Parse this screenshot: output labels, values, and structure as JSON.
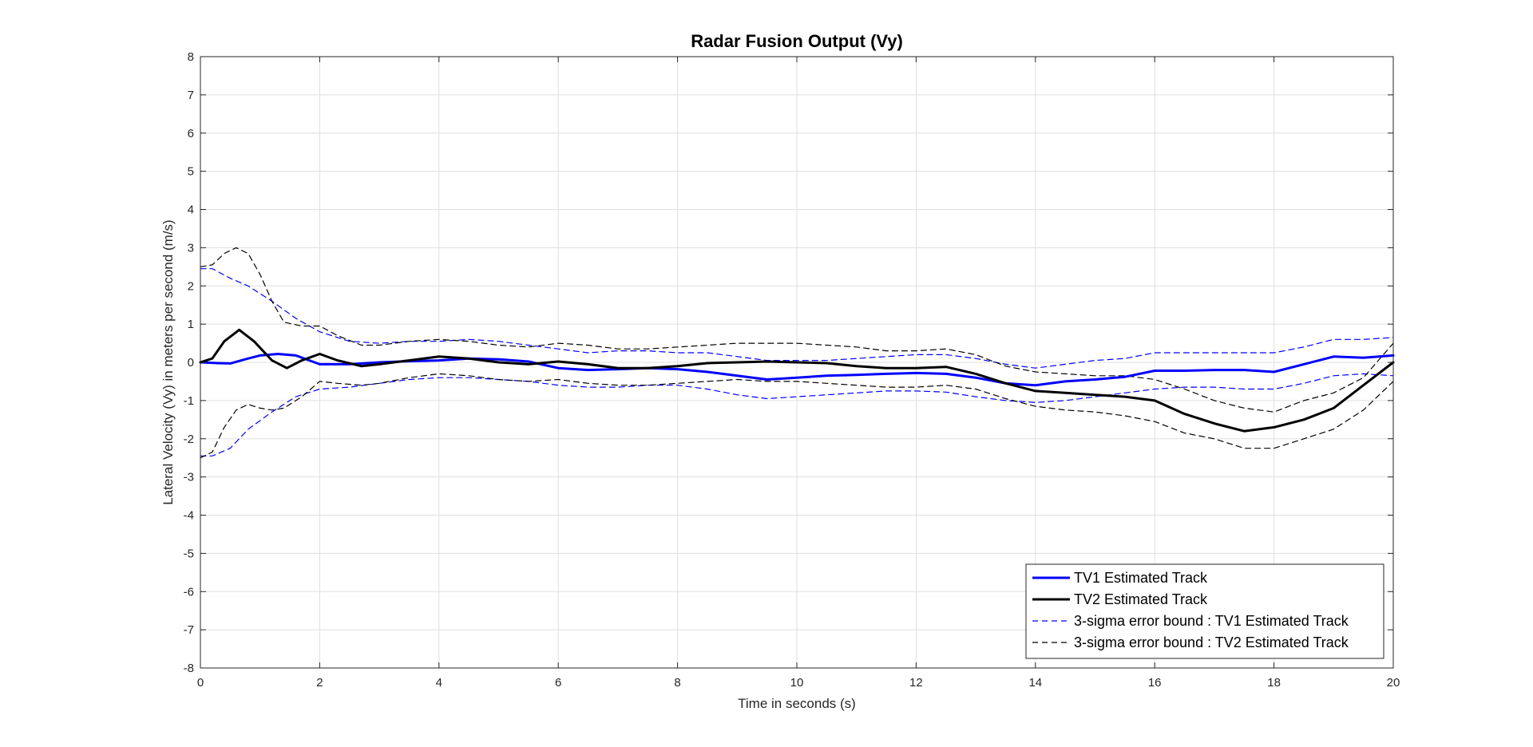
{
  "chart_data": {
    "type": "line",
    "title": "Radar Fusion Output (Vy)",
    "xlabel": "Time in seconds (s)",
    "ylabel": "Lateral Velocity (Vy) in meters per second (m/s)",
    "xlim": [
      0,
      20
    ],
    "ylim": [
      -8,
      8
    ],
    "xticks": [
      0,
      2,
      4,
      6,
      8,
      10,
      12,
      14,
      16,
      18,
      20
    ],
    "yticks": [
      -8,
      -7,
      -6,
      -5,
      -4,
      -3,
      -2,
      -1,
      0,
      1,
      2,
      3,
      4,
      5,
      6,
      7,
      8
    ],
    "grid": true,
    "legend_position": "bottom-right",
    "series": [
      {
        "name": "TV1 Estimated Track",
        "color": "#0000ff",
        "style": "solid",
        "x": [
          0,
          0.3,
          0.5,
          0.8,
          1.0,
          1.3,
          1.6,
          2.0,
          2.5,
          3,
          3.5,
          4,
          4.5,
          5,
          5.5,
          6,
          6.5,
          7,
          7.5,
          8,
          8.5,
          9,
          9.5,
          10,
          10.5,
          11,
          11.5,
          12,
          12.5,
          13,
          13.5,
          14,
          14.5,
          15,
          15.5,
          16,
          16.5,
          17,
          17.5,
          18,
          18.5,
          19,
          19.5,
          20
        ],
        "y": [
          0,
          -0.02,
          -0.03,
          0.1,
          0.18,
          0.22,
          0.18,
          -0.05,
          -0.05,
          0,
          0.03,
          0.05,
          0.1,
          0.08,
          0.02,
          -0.15,
          -0.2,
          -0.18,
          -0.15,
          -0.18,
          -0.25,
          -0.35,
          -0.45,
          -0.4,
          -0.35,
          -0.33,
          -0.3,
          -0.28,
          -0.3,
          -0.4,
          -0.55,
          -0.6,
          -0.5,
          -0.45,
          -0.38,
          -0.22,
          -0.22,
          -0.2,
          -0.2,
          -0.25,
          -0.05,
          0.15,
          0.12,
          0.18
        ]
      },
      {
        "name": "TV2 Estimated Track",
        "color": "#000000",
        "style": "solid",
        "x": [
          0,
          0.2,
          0.4,
          0.65,
          0.9,
          1.2,
          1.45,
          1.7,
          2.0,
          2.3,
          2.7,
          3,
          3.5,
          4,
          4.5,
          5,
          5.5,
          6,
          6.5,
          7,
          7.5,
          8,
          8.5,
          9,
          9.5,
          10,
          10.5,
          11,
          11.5,
          12,
          12.5,
          13,
          13.5,
          14,
          14.5,
          15,
          15.5,
          16,
          16.5,
          17,
          17.5,
          18,
          18.5,
          19,
          19.5,
          20
        ],
        "y": [
          0,
          0.1,
          0.55,
          0.85,
          0.55,
          0.05,
          -0.15,
          0.05,
          0.22,
          0.05,
          -0.1,
          -0.05,
          0.05,
          0.15,
          0.1,
          0,
          -0.05,
          0.02,
          -0.05,
          -0.15,
          -0.15,
          -0.1,
          -0.02,
          0,
          0.02,
          0,
          -0.02,
          -0.1,
          -0.15,
          -0.15,
          -0.12,
          -0.3,
          -0.55,
          -0.75,
          -0.8,
          -0.85,
          -0.9,
          -1.0,
          -1.35,
          -1.6,
          -1.8,
          -1.7,
          -1.5,
          -1.2,
          -0.6,
          0
        ]
      },
      {
        "name": "3-sigma error bound : TV1 Estimated Track",
        "color": "#0000ff",
        "style": "dashed",
        "x": [
          0,
          0.2,
          0.5,
          0.8,
          1.2,
          1.6,
          2.0,
          2.5,
          3,
          3.5,
          4,
          4.5,
          5,
          5.5,
          6,
          6.5,
          7,
          7.5,
          8,
          8.5,
          9,
          9.5,
          10,
          10.5,
          11,
          11.5,
          12,
          12.5,
          13,
          13.5,
          14,
          14.5,
          15,
          15.5,
          16,
          16.5,
          17,
          17.5,
          18,
          18.5,
          19,
          19.5,
          20
        ],
        "y": [
          2.45,
          2.45,
          2.2,
          2.0,
          1.6,
          1.15,
          0.8,
          0.55,
          0.5,
          0.55,
          0.55,
          0.6,
          0.55,
          0.45,
          0.35,
          0.25,
          0.3,
          0.3,
          0.25,
          0.25,
          0.15,
          0.05,
          0.05,
          0.05,
          0.1,
          0.15,
          0.2,
          0.2,
          0.1,
          -0.05,
          -0.15,
          -0.05,
          0.05,
          0.1,
          0.25,
          0.25,
          0.25,
          0.25,
          0.25,
          0.4,
          0.6,
          0.6,
          0.65
        ]
      },
      {
        "name": "3-sigma error bound : TV1 Estimated Track",
        "color": "#0000ff",
        "style": "dashed",
        "x": [
          0,
          0.2,
          0.5,
          0.8,
          1.2,
          1.6,
          2.0,
          2.5,
          3,
          3.5,
          4,
          4.5,
          5,
          5.5,
          6,
          6.5,
          7,
          7.5,
          8,
          8.5,
          9,
          9.5,
          10,
          10.5,
          11,
          11.5,
          12,
          12.5,
          13,
          13.5,
          14,
          14.5,
          15,
          15.5,
          16,
          16.5,
          17,
          17.5,
          18,
          18.5,
          19,
          19.5,
          20
        ],
        "y": [
          -2.45,
          -2.45,
          -2.25,
          -1.75,
          -1.3,
          -0.9,
          -0.7,
          -0.65,
          -0.55,
          -0.45,
          -0.4,
          -0.4,
          -0.45,
          -0.5,
          -0.6,
          -0.65,
          -0.65,
          -0.6,
          -0.6,
          -0.7,
          -0.85,
          -0.95,
          -0.9,
          -0.85,
          -0.8,
          -0.75,
          -0.75,
          -0.78,
          -0.9,
          -1.0,
          -1.05,
          -1.0,
          -0.9,
          -0.8,
          -0.7,
          -0.65,
          -0.65,
          -0.7,
          -0.7,
          -0.55,
          -0.35,
          -0.3,
          -0.35
        ]
      },
      {
        "name": "3-sigma error bound : TV2 Estimated Track",
        "color": "#000000",
        "style": "dashed",
        "x": [
          0,
          0.2,
          0.4,
          0.6,
          0.8,
          1.0,
          1.2,
          1.4,
          1.7,
          2.0,
          2.3,
          2.7,
          3,
          3.5,
          4,
          4.5,
          5,
          5.5,
          6,
          6.5,
          7,
          7.5,
          8,
          8.5,
          9,
          9.5,
          10,
          10.5,
          11,
          11.5,
          12,
          12.5,
          13,
          13.5,
          14,
          14.5,
          15,
          15.5,
          16,
          16.5,
          17,
          17.5,
          18,
          18.5,
          19,
          19.5,
          20
        ],
        "y": [
          2.5,
          2.55,
          2.85,
          3.0,
          2.85,
          2.3,
          1.6,
          1.05,
          0.95,
          0.95,
          0.7,
          0.45,
          0.45,
          0.55,
          0.6,
          0.55,
          0.45,
          0.4,
          0.5,
          0.45,
          0.35,
          0.35,
          0.4,
          0.45,
          0.5,
          0.5,
          0.5,
          0.45,
          0.4,
          0.3,
          0.3,
          0.35,
          0.2,
          -0.1,
          -0.25,
          -0.3,
          -0.35,
          -0.35,
          -0.45,
          -0.7,
          -1.0,
          -1.2,
          -1.3,
          -1.0,
          -0.8,
          -0.4,
          0.5
        ]
      },
      {
        "name": "3-sigma error bound : TV2 Estimated Track",
        "color": "#000000",
        "style": "dashed",
        "x": [
          0,
          0.2,
          0.4,
          0.6,
          0.8,
          1.0,
          1.2,
          1.4,
          1.7,
          2.0,
          2.3,
          2.7,
          3,
          3.5,
          4,
          4.5,
          5,
          5.5,
          6,
          6.5,
          7,
          7.5,
          8,
          8.5,
          9,
          9.5,
          10,
          10.5,
          11,
          11.5,
          12,
          12.5,
          13,
          13.5,
          14,
          14.5,
          15,
          15.5,
          16,
          16.5,
          17,
          17.5,
          18,
          18.5,
          19,
          19.5,
          20
        ],
        "y": [
          -2.5,
          -2.35,
          -1.7,
          -1.25,
          -1.1,
          -1.2,
          -1.25,
          -1.2,
          -0.9,
          -0.5,
          -0.55,
          -0.6,
          -0.55,
          -0.4,
          -0.3,
          -0.35,
          -0.45,
          -0.5,
          -0.45,
          -0.55,
          -0.6,
          -0.6,
          -0.55,
          -0.5,
          -0.45,
          -0.5,
          -0.5,
          -0.55,
          -0.6,
          -0.65,
          -0.65,
          -0.6,
          -0.7,
          -0.95,
          -1.15,
          -1.25,
          -1.3,
          -1.4,
          -1.55,
          -1.85,
          -2.0,
          -2.25,
          -2.25,
          -2.0,
          -1.75,
          -1.25,
          -0.5
        ]
      }
    ],
    "legend": [
      {
        "label": "TV1 Estimated Track",
        "color": "#0000ff",
        "style": "solid"
      },
      {
        "label": "TV2 Estimated Track",
        "color": "#000000",
        "style": "solid"
      },
      {
        "label": "3-sigma error bound : TV1 Estimated Track",
        "color": "#0000ff",
        "style": "dashed"
      },
      {
        "label": "3-sigma error bound : TV2 Estimated Track",
        "color": "#000000",
        "style": "dashed"
      }
    ]
  }
}
